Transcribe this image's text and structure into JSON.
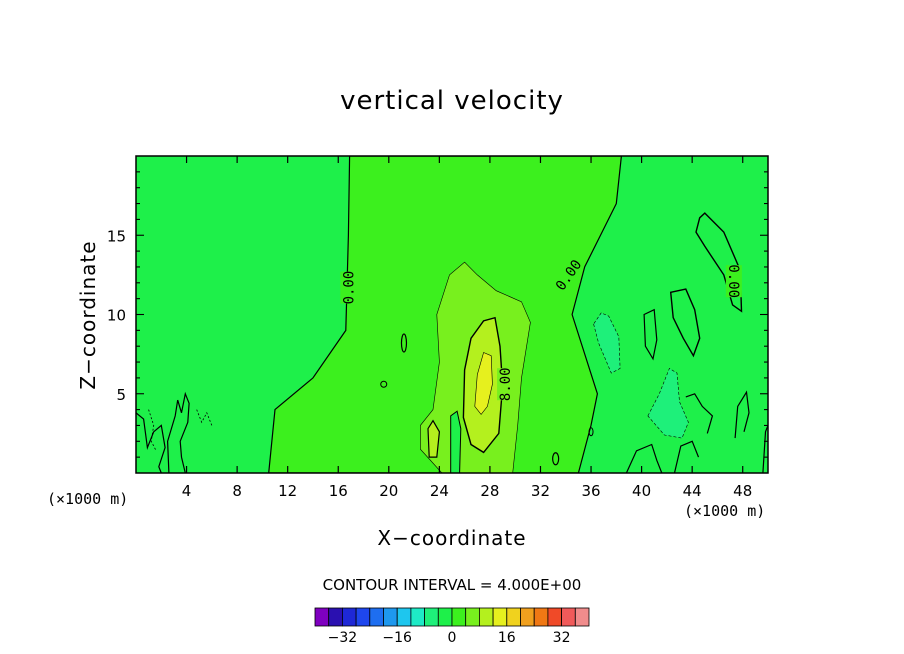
{
  "chart_data": {
    "type": "contour",
    "title": "vertical velocity",
    "xlabel": "X−coordinate",
    "ylabel": "Z−coordinate",
    "x_unit": "(×1000 m)",
    "xlim": [
      0,
      50
    ],
    "ylim": [
      0,
      20
    ],
    "x_ticks": [
      4,
      8,
      12,
      16,
      20,
      24,
      28,
      32,
      36,
      40,
      44,
      48
    ],
    "y_ticks": [
      5,
      10,
      15
    ],
    "contour_interval_label": "CONTOUR INTERVAL = 4.000E+00",
    "contour_labels": [
      {
        "text": "0.00",
        "x": 16.8,
        "y": 11.7,
        "rotate": -90
      },
      {
        "text": "8.00",
        "x": 29.2,
        "y": 5.6,
        "rotate": -90
      },
      {
        "text": "0.00",
        "x": 34.2,
        "y": 12.5,
        "rotate": -55
      },
      {
        "text": "0.00",
        "x": 47.3,
        "y": 12.1,
        "rotate": 90
      }
    ],
    "colorbar": {
      "min": -40,
      "max": 40,
      "step": 4,
      "tick_labels": [
        "−32",
        "−16",
        "0",
        "16",
        "32"
      ],
      "tick_values": [
        -32,
        -16,
        0,
        16,
        32
      ],
      "colors": [
        "#7f00c0",
        "#2a10b0",
        "#1e28d6",
        "#1e46ee",
        "#1e6ef0",
        "#1e98ee",
        "#1ec6ee",
        "#1eeac6",
        "#1ef07a",
        "#1ef04a",
        "#3cf01e",
        "#78f01e",
        "#b4f01e",
        "#e6f01e",
        "#f0d21e",
        "#f0a01e",
        "#f07814",
        "#f04a28",
        "#f05a5a",
        "#f08c8c"
      ]
    }
  }
}
